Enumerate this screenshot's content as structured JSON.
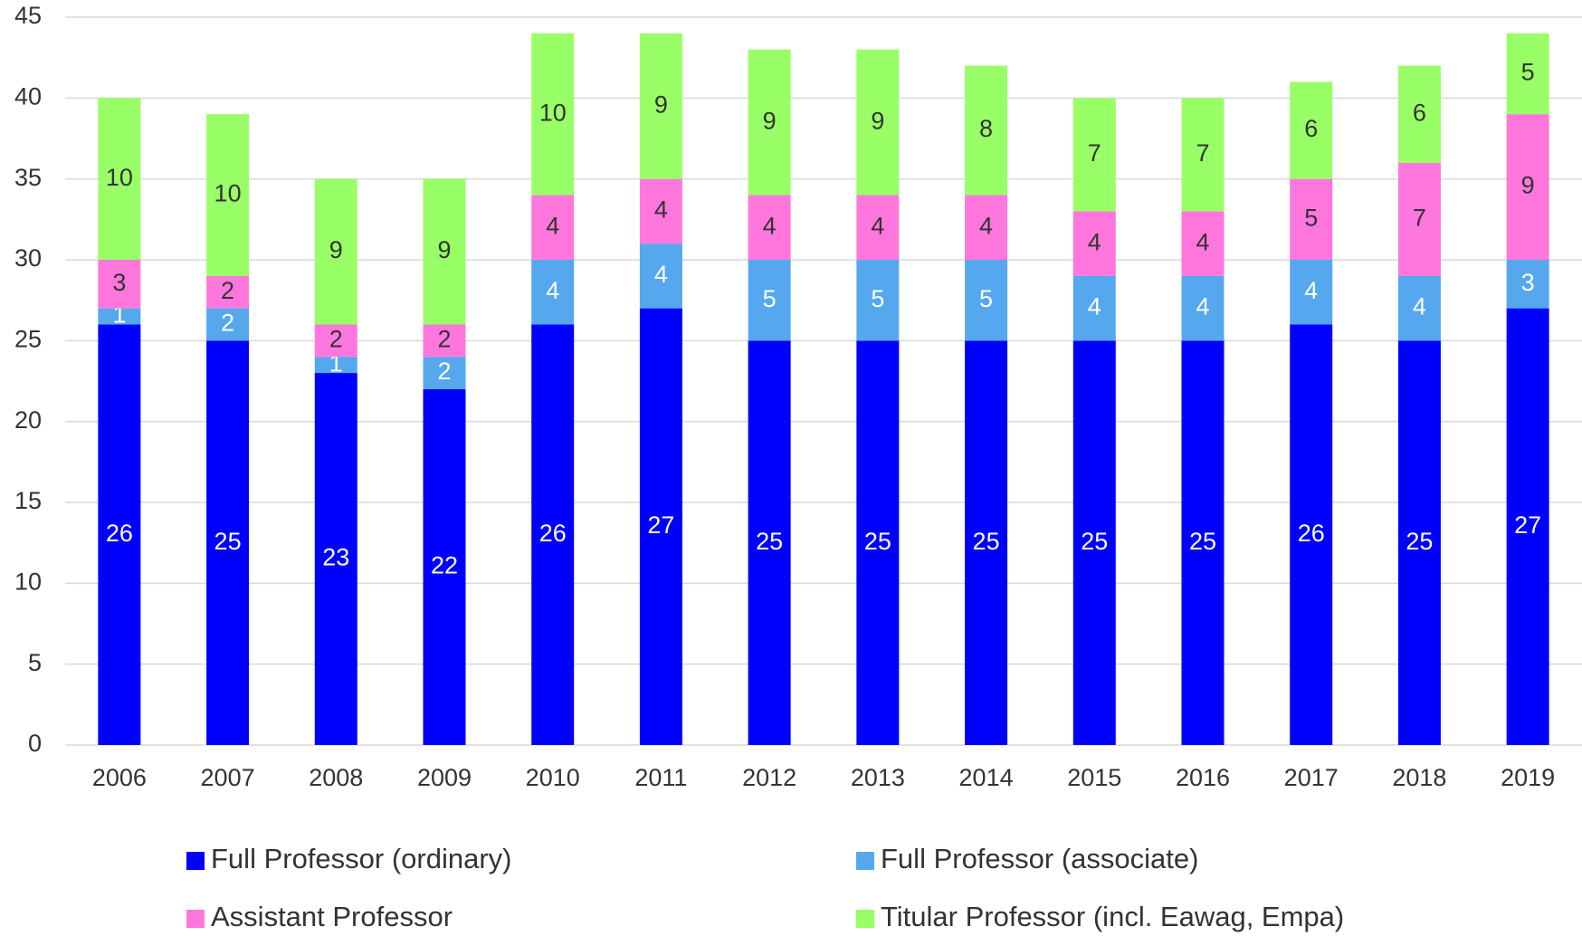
{
  "chart_data": {
    "type": "stacked-bar",
    "categories": [
      "2006",
      "2007",
      "2008",
      "2009",
      "2010",
      "2011",
      "2012",
      "2013",
      "2014",
      "2015",
      "2016",
      "2017",
      "2018",
      "2019"
    ],
    "series": [
      {
        "name": "Full Professor (ordinary)",
        "color": "#0000ff",
        "values": [
          26,
          25,
          23,
          22,
          26,
          27,
          25,
          25,
          25,
          25,
          25,
          26,
          25,
          27
        ]
      },
      {
        "name": "Full Professor (associate)",
        "color": "#55a8ee",
        "values": [
          1,
          2,
          1,
          2,
          4,
          4,
          5,
          5,
          5,
          4,
          4,
          4,
          4,
          3
        ]
      },
      {
        "name": "Assistant Professor",
        "color": "#ff77dd",
        "values": [
          3,
          2,
          2,
          2,
          4,
          4,
          4,
          4,
          4,
          4,
          4,
          5,
          7,
          9
        ]
      },
      {
        "name": "Titular Professor (incl. Eawag, Empa)",
        "color": "#99ff66",
        "values": [
          10,
          10,
          9,
          9,
          10,
          9,
          9,
          9,
          8,
          7,
          7,
          6,
          6,
          5
        ]
      }
    ],
    "ylim": [
      0,
      45
    ],
    "yticks": [
      0,
      5,
      10,
      15,
      20,
      25,
      30,
      35,
      40,
      45
    ],
    "grid": true,
    "legend": "bottom"
  }
}
